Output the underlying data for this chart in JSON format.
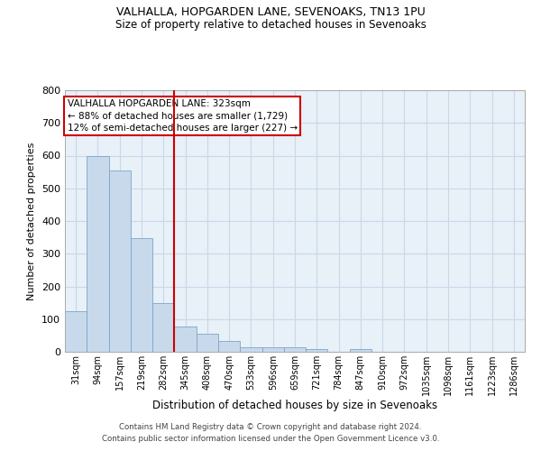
{
  "title1": "VALHALLA, HOPGARDEN LANE, SEVENOAKS, TN13 1PU",
  "title2": "Size of property relative to detached houses in Sevenoaks",
  "xlabel": "Distribution of detached houses by size in Sevenoaks",
  "ylabel": "Number of detached properties",
  "categories": [
    "31sqm",
    "94sqm",
    "157sqm",
    "219sqm",
    "282sqm",
    "345sqm",
    "408sqm",
    "470sqm",
    "533sqm",
    "596sqm",
    "659sqm",
    "721sqm",
    "784sqm",
    "847sqm",
    "910sqm",
    "972sqm",
    "1035sqm",
    "1098sqm",
    "1161sqm",
    "1223sqm",
    "1286sqm"
  ],
  "values": [
    125,
    600,
    555,
    348,
    148,
    77,
    55,
    33,
    15,
    13,
    13,
    7,
    0,
    8,
    0,
    0,
    0,
    0,
    0,
    0,
    0
  ],
  "bar_color": "#c8d9eb",
  "bar_edge_color": "#7aa6c8",
  "vline_x": 4.5,
  "vline_color": "#cc0000",
  "annotation_text": "VALHALLA HOPGARDEN LANE: 323sqm\n← 88% of detached houses are smaller (1,729)\n12% of semi-detached houses are larger (227) →",
  "annotation_box_color": "#ffffff",
  "annotation_box_edge_color": "#cc0000",
  "grid_color": "#c8d8e8",
  "background_color": "#e8f0f8",
  "footer1": "Contains HM Land Registry data © Crown copyright and database right 2024.",
  "footer2": "Contains public sector information licensed under the Open Government Licence v3.0.",
  "ylim": [
    0,
    800
  ],
  "yticks": [
    0,
    100,
    200,
    300,
    400,
    500,
    600,
    700,
    800
  ]
}
